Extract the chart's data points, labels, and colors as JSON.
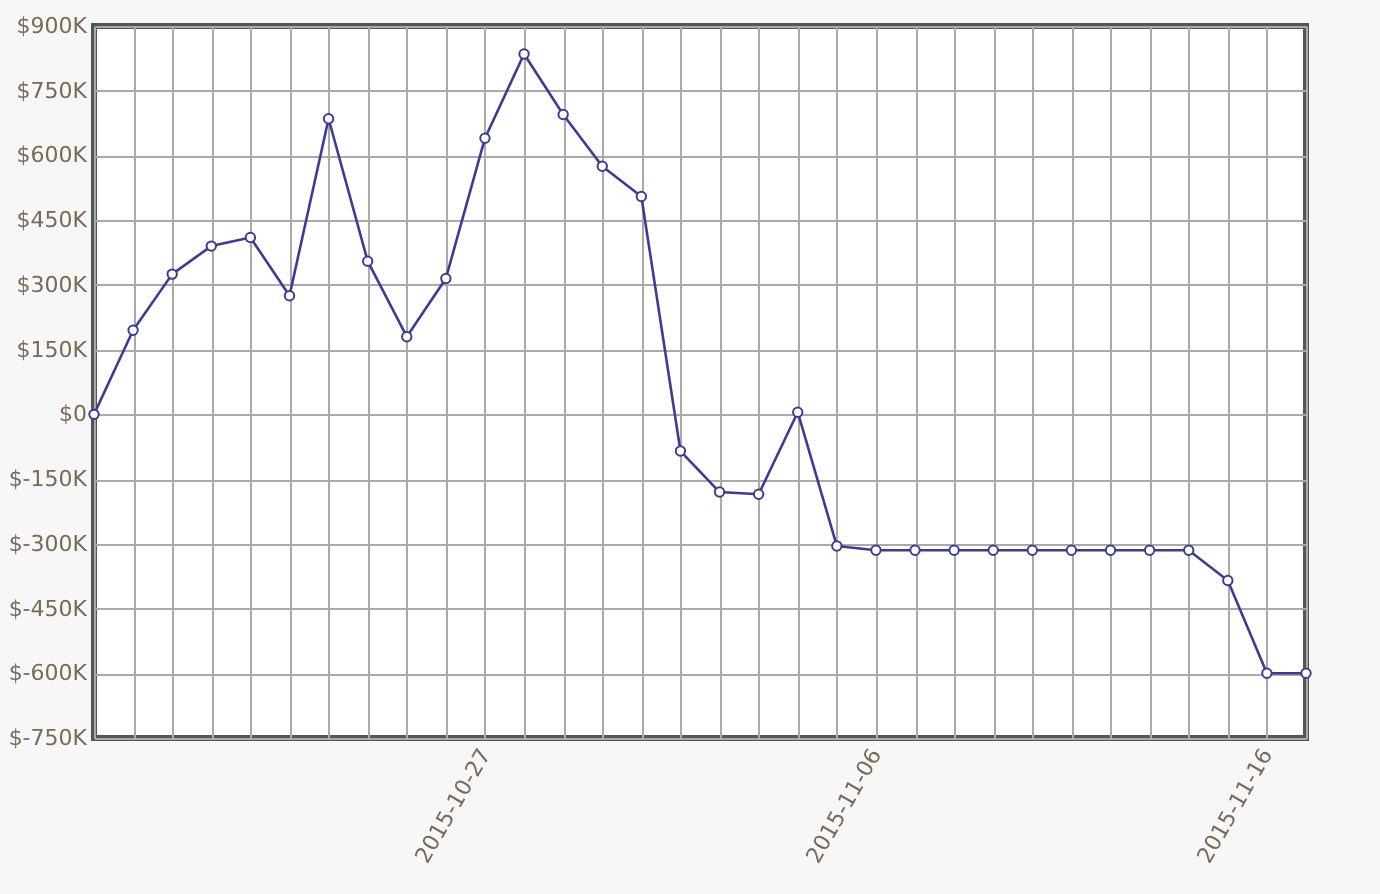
{
  "chart_data": {
    "type": "line",
    "x": [
      "2015-10-17",
      "2015-10-18",
      "2015-10-19",
      "2015-10-20",
      "2015-10-21",
      "2015-10-22",
      "2015-10-23",
      "2015-10-24",
      "2015-10-25",
      "2015-10-26",
      "2015-10-27",
      "2015-10-28",
      "2015-10-29",
      "2015-10-30",
      "2015-10-31",
      "2015-11-01",
      "2015-11-02",
      "2015-11-03",
      "2015-11-04",
      "2015-11-05",
      "2015-11-06",
      "2015-11-07",
      "2015-11-08",
      "2015-11-09",
      "2015-11-10",
      "2015-11-11",
      "2015-11-12",
      "2015-11-13",
      "2015-11-14",
      "2015-11-15",
      "2015-11-16",
      "2015-11-17"
    ],
    "series": [
      {
        "color": "#3c3c96",
        "values": [
          0,
          195,
          325,
          390,
          410,
          275,
          685,
          355,
          180,
          315,
          640,
          835,
          695,
          575,
          505,
          -85,
          -180,
          -185,
          5,
          -305,
          -315,
          -315,
          -315,
          -315,
          -315,
          -315,
          -315,
          -315,
          -315,
          -385,
          -600,
          -600
        ]
      }
    ],
    "xlim": [
      "2015-10-17",
      "2015-11-17"
    ],
    "xticks": [
      {
        "value": "2015-10-17",
        "label": null
      },
      {
        "value": "2015-10-18",
        "label": null
      },
      {
        "value": "2015-10-19",
        "label": null
      },
      {
        "value": "2015-10-20",
        "label": null
      },
      {
        "value": "2015-10-21",
        "label": null
      },
      {
        "value": "2015-10-22",
        "label": null
      },
      {
        "value": "2015-10-23",
        "label": null
      },
      {
        "value": "2015-10-24",
        "label": null
      },
      {
        "value": "2015-10-25",
        "label": null
      },
      {
        "value": "2015-10-26",
        "label": null
      },
      "2015-10-27",
      {
        "value": "2015-10-28",
        "label": null
      },
      {
        "value": "2015-10-29",
        "label": null
      },
      {
        "value": "2015-10-30",
        "label": null
      },
      {
        "value": "2015-10-31",
        "label": null
      },
      {
        "value": "2015-11-01",
        "label": null
      },
      {
        "value": "2015-11-02",
        "label": null
      },
      {
        "value": "2015-11-03",
        "label": null
      },
      {
        "value": "2015-11-04",
        "label": null
      },
      {
        "value": "2015-11-05",
        "label": null
      },
      "2015-11-06",
      {
        "value": "2015-11-07",
        "label": null
      },
      {
        "value": "2015-11-08",
        "label": null
      },
      {
        "value": "2015-11-09",
        "label": null
      },
      {
        "value": "2015-11-10",
        "label": null
      },
      {
        "value": "2015-11-11",
        "label": null
      },
      {
        "value": "2015-11-12",
        "label": null
      },
      {
        "value": "2015-11-13",
        "label": null
      },
      {
        "value": "2015-11-14",
        "label": null
      },
      {
        "value": "2015-11-15",
        "label": null
      },
      "2015-11-16",
      {
        "value": "2015-11-17",
        "label": null
      }
    ],
    "ylim": [
      -750,
      900
    ],
    "yticks": [
      {
        "value": -750,
        "label": "$-750K"
      },
      {
        "value": -600,
        "label": "$-600K"
      },
      {
        "value": -450,
        "label": "$-450K"
      },
      {
        "value": -300,
        "label": "$-300K"
      },
      {
        "value": -150,
        "label": "$-150K"
      },
      {
        "value": 0,
        "label": "$0"
      },
      {
        "value": 150,
        "label": "$150K"
      },
      {
        "value": 300,
        "label": "$300K"
      },
      {
        "value": 450,
        "label": "$450K"
      },
      {
        "value": 600,
        "label": "$600K"
      },
      {
        "value": 750,
        "label": "$750K"
      },
      {
        "value": 900,
        "label": "$900K"
      }
    ],
    "grid": true,
    "marker": "circle",
    "line_style": "solid"
  }
}
